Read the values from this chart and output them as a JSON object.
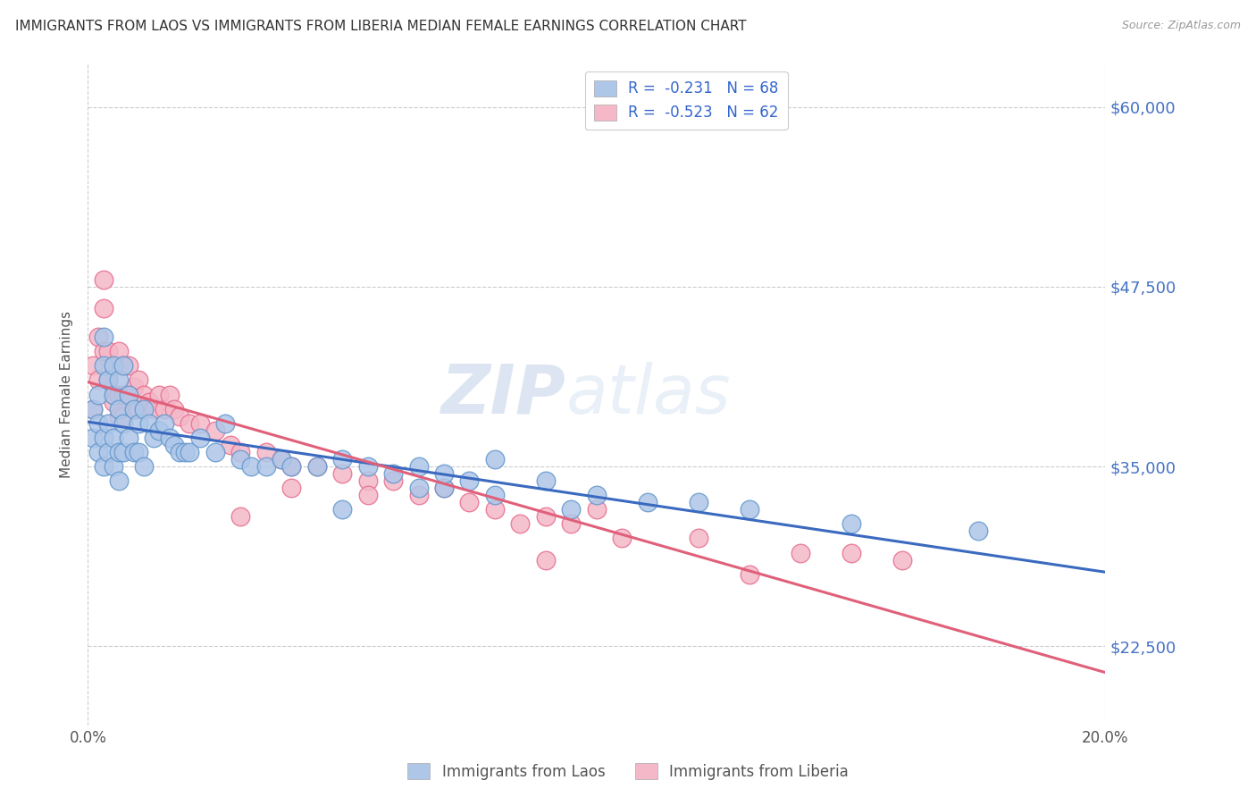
{
  "title": "IMMIGRANTS FROM LAOS VS IMMIGRANTS FROM LIBERIA MEDIAN FEMALE EARNINGS CORRELATION CHART",
  "source": "Source: ZipAtlas.com",
  "ylabel": "Median Female Earnings",
  "xlim": [
    0.0,
    0.2
  ],
  "ylim": [
    17000,
    63000
  ],
  "yticks": [
    22500,
    35000,
    47500,
    60000
  ],
  "ytick_labels": [
    "$22,500",
    "$35,000",
    "$47,500",
    "$60,000"
  ],
  "xticks": [
    0.0,
    0.05,
    0.1,
    0.15,
    0.2
  ],
  "xtick_labels": [
    "0.0%",
    "",
    "",
    "",
    "20.0%"
  ],
  "legend_entries": [
    {
      "label": "Immigrants from Laos",
      "color": "#aec6e8",
      "border": "#6699cc",
      "R": "-0.231",
      "N": "68"
    },
    {
      "label": "Immigrants from Liberia",
      "color": "#f4b8c8",
      "border": "#e87090",
      "R": "-0.523",
      "N": "62"
    }
  ],
  "line_color_laos": "#3a6abf",
  "line_color_liberia": "#e0607a",
  "watermark_zip": "ZIP",
  "watermark_atlas": "atlas",
  "background_color": "#ffffff",
  "grid_color": "#cccccc",
  "title_color": "#333333",
  "laos_x": [
    0.001,
    0.001,
    0.002,
    0.002,
    0.002,
    0.003,
    0.003,
    0.003,
    0.003,
    0.004,
    0.004,
    0.004,
    0.005,
    0.005,
    0.005,
    0.005,
    0.006,
    0.006,
    0.006,
    0.006,
    0.007,
    0.007,
    0.007,
    0.008,
    0.008,
    0.009,
    0.009,
    0.01,
    0.01,
    0.011,
    0.011,
    0.012,
    0.013,
    0.014,
    0.015,
    0.016,
    0.017,
    0.018,
    0.019,
    0.02,
    0.022,
    0.025,
    0.027,
    0.03,
    0.032,
    0.035,
    0.038,
    0.04,
    0.045,
    0.05,
    0.055,
    0.06,
    0.065,
    0.07,
    0.075,
    0.08,
    0.09,
    0.1,
    0.11,
    0.12,
    0.13,
    0.05,
    0.065,
    0.07,
    0.08,
    0.095,
    0.15,
    0.175
  ],
  "laos_y": [
    39000,
    37000,
    40000,
    36000,
    38000,
    42000,
    44000,
    37000,
    35000,
    41000,
    38000,
    36000,
    42000,
    40000,
    37000,
    35000,
    41000,
    39000,
    36000,
    34000,
    42000,
    38000,
    36000,
    40000,
    37000,
    39000,
    36000,
    38000,
    36000,
    39000,
    35000,
    38000,
    37000,
    37500,
    38000,
    37000,
    36500,
    36000,
    36000,
    36000,
    37000,
    36000,
    38000,
    35500,
    35000,
    35000,
    35500,
    35000,
    35000,
    35500,
    35000,
    34500,
    35000,
    33500,
    34000,
    35500,
    34000,
    33000,
    32500,
    32500,
    32000,
    32000,
    33500,
    34500,
    33000,
    32000,
    31000,
    30500
  ],
  "liberia_x": [
    0.001,
    0.001,
    0.002,
    0.002,
    0.003,
    0.003,
    0.003,
    0.004,
    0.004,
    0.005,
    0.005,
    0.005,
    0.006,
    0.006,
    0.006,
    0.007,
    0.007,
    0.007,
    0.008,
    0.008,
    0.009,
    0.009,
    0.01,
    0.01,
    0.011,
    0.012,
    0.013,
    0.014,
    0.015,
    0.016,
    0.017,
    0.018,
    0.02,
    0.022,
    0.025,
    0.028,
    0.03,
    0.035,
    0.038,
    0.04,
    0.045,
    0.05,
    0.055,
    0.06,
    0.065,
    0.07,
    0.075,
    0.08,
    0.085,
    0.09,
    0.095,
    0.1,
    0.03,
    0.04,
    0.055,
    0.105,
    0.12,
    0.14,
    0.15,
    0.16,
    0.13,
    0.09
  ],
  "liberia_y": [
    42000,
    39000,
    44000,
    41000,
    48000,
    46000,
    43000,
    43000,
    41000,
    40000,
    42000,
    39500,
    43000,
    40000,
    38500,
    42000,
    40000,
    38500,
    42000,
    40000,
    40500,
    39000,
    41000,
    39000,
    40000,
    39500,
    39000,
    40000,
    39000,
    40000,
    39000,
    38500,
    38000,
    38000,
    37500,
    36500,
    36000,
    36000,
    35500,
    35000,
    35000,
    34500,
    34000,
    34000,
    33000,
    33500,
    32500,
    32000,
    31000,
    31500,
    31000,
    32000,
    31500,
    33500,
    33000,
    30000,
    30000,
    29000,
    29000,
    28500,
    27500,
    28500
  ]
}
